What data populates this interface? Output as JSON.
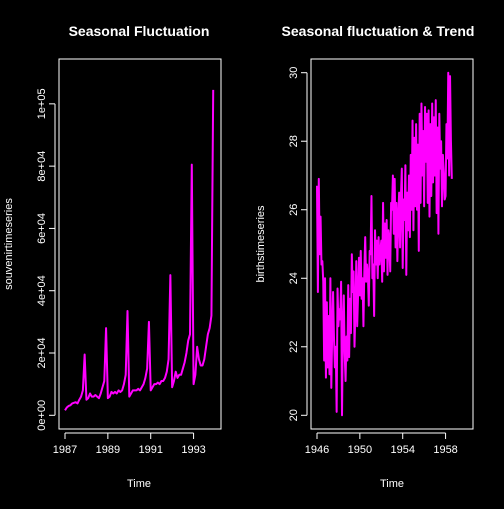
{
  "colors": {
    "background": "#000000",
    "foreground": "#ffffff",
    "series": "#ff00ff"
  },
  "chart_data": [
    {
      "type": "line",
      "title": "Seasonal Fluctuation",
      "xlabel": "Time",
      "ylabel": "souvenirtimeseries",
      "xlim": [
        1987,
        1994
      ],
      "ylim": [
        0,
        110000
      ],
      "x_ticks": [
        1987,
        1989,
        1991,
        1993
      ],
      "y_ticks": [
        0,
        20000,
        40000,
        60000,
        80000,
        100000
      ],
      "y_tick_labels": [
        "0e+00",
        "2e+04",
        "4e+04",
        "6e+04",
        "8e+04",
        "1e+05"
      ],
      "start": 1987,
      "frequency": 12,
      "series": [
        {
          "values": [
            1600,
            2500,
            3000,
            3200,
            3800,
            4000,
            4200,
            3800,
            5000,
            6000,
            8000,
            19500,
            5000,
            5500,
            7000,
            6000,
            6000,
            6500,
            6000,
            5500,
            7000,
            9000,
            11000,
            28000,
            5500,
            6000,
            7500,
            7000,
            7500,
            7000,
            8000,
            7500,
            8000,
            10000,
            13000,
            33500,
            6000,
            7000,
            8000,
            8000,
            8000,
            8500,
            8000,
            9000,
            10000,
            12000,
            15000,
            30000,
            8000,
            9000,
            10000,
            10000,
            10500,
            10000,
            11000,
            11000,
            12000,
            14000,
            18000,
            45000,
            9000,
            11000,
            14000,
            12000,
            13000,
            13000,
            15000,
            17000,
            20000,
            24000,
            26000,
            80500,
            10000,
            13000,
            22000,
            18000,
            16000,
            16000,
            18000,
            22000,
            26000,
            28000,
            32000,
            104500
          ]
        }
      ]
    },
    {
      "type": "line",
      "title": "Seasonal fluctuation & Trend",
      "xlabel": "Time",
      "ylabel": "birthstimeseries",
      "xlim": [
        1946,
        1960
      ],
      "ylim": [
        20,
        30
      ],
      "x_ticks": [
        1946,
        1950,
        1954,
        1958
      ],
      "y_ticks": [
        20,
        22,
        24,
        26,
        28,
        30
      ],
      "y_tick_labels": [
        "20",
        "22",
        "24",
        "26",
        "28",
        "30"
      ],
      "start": 1946,
      "frequency": 12,
      "series": [
        {
          "values": [
            26.7,
            23.6,
            26.9,
            24.7,
            25.8,
            24.4,
            24.5,
            23.9,
            21.6,
            24.0,
            21.1,
            23.3,
            21.4,
            22.9,
            21.2,
            24.0,
            20.8,
            22.4,
            23.6,
            22.3,
            21.4,
            22.0,
            20.1,
            23.7,
            22.6,
            23.1,
            22.8,
            23.9,
            20.0,
            22.6,
            23.5,
            21.8,
            21.0,
            22.3,
            21.6,
            23.8,
            21.7,
            23.4,
            22.4,
            24.7,
            23.6,
            24.2,
            22.0,
            23.1,
            24.5,
            22.6,
            23.5,
            24.6,
            23.5,
            24.8,
            23.4,
            24.0,
            22.6,
            24.2,
            25.2,
            23.9,
            24.4,
            24.1,
            23.2,
            24.8,
            24.7,
            26.4,
            24.0,
            24.4,
            22.9,
            25.4,
            24.4,
            25.1,
            24.0,
            25.2,
            24.4,
            24.8,
            25.1,
            23.9,
            26.2,
            24.2,
            25.6,
            24.6,
            25.7,
            24.1,
            25.4,
            25.1,
            24.2,
            26.2,
            26.0,
            27.0,
            25.3,
            26.9,
            24.9,
            26.2,
            24.5,
            25.8,
            26.5,
            24.9,
            26.4,
            27.2,
            24.3,
            26.3,
            25.7,
            27.3,
            24.1,
            26.5,
            25.4,
            27.0,
            25.2,
            27.6,
            26.0,
            28.6,
            25.4,
            28.1,
            26.1,
            28.5,
            26.0,
            27.9,
            24.8,
            28.8,
            26.2,
            29.1,
            27.0,
            28.3,
            26.1,
            29.0,
            27.4,
            28.8,
            26.2,
            28.9,
            25.8,
            28.5,
            26.4,
            29.1,
            26.8,
            28.7,
            27.0,
            29.2,
            25.9,
            28.4,
            25.3,
            28.8,
            27.2,
            28.0,
            26.1,
            27.6,
            27.1,
            26.3,
            26.4,
            28.5,
            27.5,
            30.0,
            27.0,
            29.9,
            28.0,
            26.9
          ]
        }
      ]
    }
  ]
}
